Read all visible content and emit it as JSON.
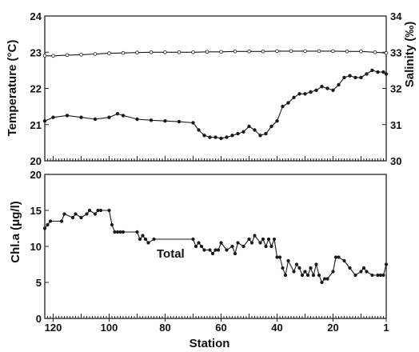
{
  "colors": {
    "line": "#1a1a1a",
    "salinity_marker": "#ffffff",
    "background": "#ffffff"
  },
  "chart_data": [
    {
      "type": "line",
      "panel": "top",
      "xlabel": "",
      "ylabel": "Temperature (°C)",
      "y2label": "Salinity (‰)",
      "xlim": [
        123,
        1
      ],
      "x_reversed": true,
      "ylim": [
        20,
        24
      ],
      "y2lim": [
        30,
        34
      ],
      "yticks": [
        "20",
        "21",
        "22",
        "23",
        "24"
      ],
      "y2ticks": [
        "30",
        "31",
        "32",
        "33",
        "34"
      ],
      "grid": false,
      "series": [
        {
          "axis": "left",
          "marker": "filled",
          "x": [
            123,
            120,
            115,
            110,
            105,
            100,
            97,
            95,
            90,
            85,
            80,
            75,
            70,
            68,
            66,
            64,
            62,
            60,
            58,
            56,
            54,
            52,
            50,
            48,
            46,
            44,
            42,
            40,
            38,
            36,
            34,
            32,
            30,
            28,
            26,
            24,
            22,
            20,
            18,
            16,
            14,
            12,
            10,
            8,
            6,
            4,
            2,
            1
          ],
          "values": [
            21.1,
            21.2,
            21.25,
            21.2,
            21.15,
            21.2,
            21.3,
            21.25,
            21.15,
            21.12,
            21.1,
            21.08,
            21.05,
            20.85,
            20.7,
            20.65,
            20.65,
            20.62,
            20.65,
            20.7,
            20.75,
            20.8,
            20.95,
            20.85,
            20.7,
            20.75,
            20.95,
            21.1,
            21.5,
            21.6,
            21.75,
            21.85,
            21.85,
            21.9,
            21.95,
            22.05,
            22.0,
            21.95,
            22.1,
            22.3,
            22.35,
            22.3,
            22.3,
            22.4,
            22.5,
            22.45,
            22.45,
            22.4
          ]
        },
        {
          "axis": "right",
          "marker": "open",
          "x": [
            123,
            120,
            115,
            110,
            105,
            100,
            95,
            90,
            85,
            80,
            75,
            70,
            65,
            60,
            55,
            50,
            45,
            40,
            35,
            30,
            25,
            20,
            15,
            10,
            5,
            1
          ],
          "values": [
            32.9,
            32.9,
            32.92,
            32.93,
            32.95,
            32.97,
            32.98,
            32.99,
            33.0,
            33.0,
            33.0,
            33.0,
            33.01,
            33.01,
            33.02,
            33.02,
            33.02,
            33.03,
            33.03,
            33.03,
            33.03,
            33.03,
            33.02,
            33.02,
            33.0,
            32.98
          ]
        }
      ]
    },
    {
      "type": "line",
      "panel": "bottom",
      "xlabel": "Station",
      "ylabel": "Chl.a (μg/l)",
      "xlim": [
        123,
        1
      ],
      "x_reversed": true,
      "ylim": [
        0,
        20
      ],
      "xticks": [
        "120",
        "100",
        "80",
        "60",
        "40",
        "20",
        "1"
      ],
      "yticks": [
        "0",
        "5",
        "10",
        "15",
        "20"
      ],
      "annotation": "Total",
      "grid": false,
      "series": [
        {
          "marker": "filled",
          "x": [
            123,
            122,
            121,
            117,
            116,
            113,
            112,
            110,
            108,
            107,
            105,
            104,
            103,
            100,
            99,
            98,
            97,
            96,
            95,
            90,
            89,
            88,
            87,
            86,
            84,
            70,
            69,
            68,
            67,
            66,
            64,
            63,
            62,
            61,
            60,
            58,
            56,
            55,
            54,
            52,
            50,
            49,
            48,
            46,
            45,
            44,
            43,
            42,
            41,
            40,
            39,
            38,
            37,
            36,
            34,
            33,
            32,
            31,
            30,
            29,
            28,
            27,
            26,
            25,
            24,
            23,
            22,
            20,
            19,
            18,
            16,
            14,
            12,
            10,
            9,
            8,
            6,
            4,
            3,
            2,
            1
          ],
          "values": [
            12.5,
            13.0,
            13.5,
            13.5,
            14.5,
            14.0,
            14.5,
            14.0,
            14.5,
            15.0,
            14.5,
            15.0,
            15.0,
            15.0,
            13.0,
            12.0,
            12.0,
            12.0,
            12.0,
            12.0,
            11.0,
            11.5,
            11.0,
            10.5,
            11.0,
            11.0,
            10.0,
            10.5,
            10.0,
            9.5,
            9.5,
            9.0,
            9.5,
            9.5,
            10.5,
            9.5,
            10.0,
            9.0,
            10.5,
            10.0,
            11.0,
            10.5,
            11.5,
            10.5,
            11.0,
            10.0,
            11.0,
            10.0,
            11.0,
            8.5,
            8.5,
            7.0,
            6.0,
            8.0,
            6.5,
            7.5,
            7.0,
            6.0,
            6.5,
            6.0,
            7.0,
            6.0,
            7.5,
            6.0,
            5.0,
            5.5,
            5.5,
            6.5,
            8.5,
            8.5,
            8.0,
            7.0,
            6.0,
            6.5,
            7.0,
            6.5,
            6.0,
            6.0,
            6.0,
            6.0,
            7.5
          ]
        }
      ]
    }
  ]
}
